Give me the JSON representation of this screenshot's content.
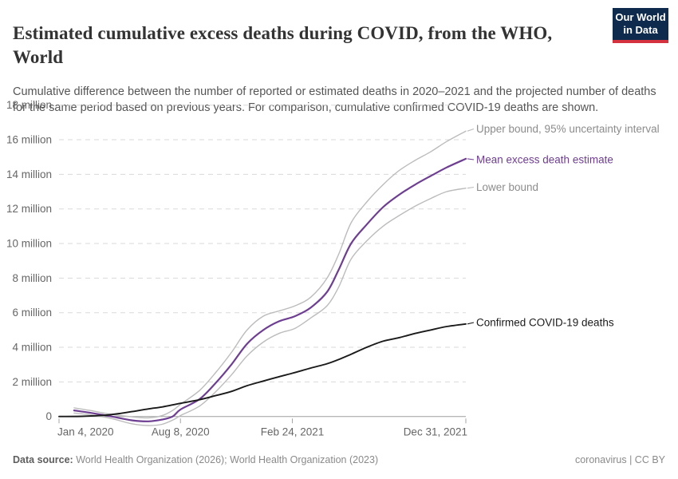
{
  "header": {
    "title": "Estimated cumulative excess deaths during COVID, from the WHO, World",
    "subtitle": "Cumulative difference between the number of reported or estimated deaths in 2020–2021 and the projected number of deaths for the same period based on previous years. For comparison, cumulative confirmed COVID-19 deaths are shown.",
    "logo": {
      "line1": "Our World",
      "line2": "in Data"
    }
  },
  "footer": {
    "source_label": "Data source:",
    "source_text": " World Health Organization (2026); World Health Organization (2023)",
    "right_text": "coronavirus | CC BY"
  },
  "colors": {
    "accent_purple": "#6d3e91",
    "bound_gray": "#bcbcbc",
    "bound_label_gray": "#8c8c8c",
    "confirmed_black": "#1a1a1a",
    "grid": "#dadada",
    "zero_line": "#9e9e9e",
    "tick_text": "#666666",
    "logo_navy": "#0e2a4d",
    "logo_red": "#d4323e"
  },
  "chart_data": {
    "type": "line",
    "title": "Estimated cumulative excess deaths during COVID, from the WHO, World",
    "unit": "million deaths",
    "x_unit": "days since Jan 4, 2020",
    "x_range_days": 727,
    "ylim": [
      -0.9,
      18
    ],
    "grid": "dashed-horizontal",
    "legend_position": "right-of-line-ends",
    "y_ticks": [
      {
        "v": 0,
        "label": "0"
      },
      {
        "v": 2,
        "label": "2 million"
      },
      {
        "v": 4,
        "label": "4 million"
      },
      {
        "v": 6,
        "label": "6 million"
      },
      {
        "v": 8,
        "label": "8 million"
      },
      {
        "v": 10,
        "label": "10 million"
      },
      {
        "v": 12,
        "label": "12 million"
      },
      {
        "v": 14,
        "label": "14 million"
      },
      {
        "v": 16,
        "label": "16 million"
      },
      {
        "v": 18,
        "label": "18 million"
      }
    ],
    "x_ticks": [
      {
        "d": 0,
        "label": "Jan 4, 2020",
        "align": "start"
      },
      {
        "d": 217,
        "label": "Aug 8, 2020",
        "align": "middle"
      },
      {
        "d": 417,
        "label": "Feb 24, 2021",
        "align": "middle"
      },
      {
        "d": 727,
        "label": "Dec 31, 2021",
        "align": "end"
      }
    ],
    "series": [
      {
        "id": "upper-bound",
        "label": "Upper bound, 95% uncertainty interval",
        "color": "#bcbcbc",
        "label_color": "#8c8c8c",
        "width": 1.4,
        "end_value_millions": 16.5,
        "points": [
          [
            27,
            0.5
          ],
          [
            55,
            0.35
          ],
          [
            94,
            0.12
          ],
          [
            130,
            -0.02
          ],
          [
            160,
            -0.08
          ],
          [
            184,
            0.05
          ],
          [
            203,
            0.35
          ],
          [
            217,
            0.7
          ],
          [
            251,
            1.5
          ],
          [
            279,
            2.5
          ],
          [
            308,
            3.7
          ],
          [
            336,
            5.0
          ],
          [
            365,
            5.8
          ],
          [
            393,
            6.1
          ],
          [
            422,
            6.4
          ],
          [
            450,
            6.9
          ],
          [
            479,
            8.0
          ],
          [
            500,
            9.4
          ],
          [
            522,
            11.2
          ],
          [
            550,
            12.4
          ],
          [
            579,
            13.4
          ],
          [
            607,
            14.2
          ],
          [
            636,
            14.8
          ],
          [
            664,
            15.3
          ],
          [
            693,
            15.9
          ],
          [
            727,
            16.5
          ]
        ]
      },
      {
        "id": "lower-bound",
        "label": "Lower bound",
        "color": "#bcbcbc",
        "label_color": "#8c8c8c",
        "width": 1.4,
        "end_value_millions": 13.2,
        "points": [
          [
            27,
            0.2
          ],
          [
            55,
            0.1
          ],
          [
            94,
            -0.12
          ],
          [
            130,
            -0.42
          ],
          [
            160,
            -0.52
          ],
          [
            184,
            -0.45
          ],
          [
            205,
            -0.18
          ],
          [
            217,
            0.05
          ],
          [
            251,
            0.6
          ],
          [
            279,
            1.4
          ],
          [
            308,
            2.4
          ],
          [
            336,
            3.5
          ],
          [
            365,
            4.3
          ],
          [
            393,
            4.8
          ],
          [
            422,
            5.1
          ],
          [
            450,
            5.7
          ],
          [
            479,
            6.4
          ],
          [
            500,
            7.5
          ],
          [
            522,
            9.1
          ],
          [
            550,
            10.15
          ],
          [
            579,
            11.0
          ],
          [
            607,
            11.6
          ],
          [
            636,
            12.15
          ],
          [
            664,
            12.6
          ],
          [
            693,
            13.0
          ],
          [
            727,
            13.2
          ]
        ]
      },
      {
        "id": "mean-excess",
        "label": "Mean excess death estimate",
        "color": "#6d3e91",
        "label_color": "#6d3e91",
        "width": 2.2,
        "end_value_millions": 14.9,
        "points": [
          [
            27,
            0.35
          ],
          [
            55,
            0.22
          ],
          [
            94,
            0.0
          ],
          [
            130,
            -0.22
          ],
          [
            160,
            -0.28
          ],
          [
            184,
            -0.18
          ],
          [
            203,
            0.0
          ],
          [
            217,
            0.4
          ],
          [
            251,
            1.0
          ],
          [
            279,
            1.9
          ],
          [
            308,
            3.0
          ],
          [
            336,
            4.2
          ],
          [
            365,
            5.0
          ],
          [
            393,
            5.5
          ],
          [
            422,
            5.8
          ],
          [
            450,
            6.3
          ],
          [
            479,
            7.2
          ],
          [
            500,
            8.5
          ],
          [
            522,
            10.0
          ],
          [
            550,
            11.1
          ],
          [
            579,
            12.1
          ],
          [
            607,
            12.8
          ],
          [
            636,
            13.4
          ],
          [
            664,
            13.9
          ],
          [
            693,
            14.4
          ],
          [
            727,
            14.9
          ]
        ]
      },
      {
        "id": "confirmed-deaths",
        "label": "Confirmed COVID-19 deaths",
        "color": "#1a1a1a",
        "label_color": "#1a1a1a",
        "width": 1.9,
        "end_value_millions": 5.35,
        "points": [
          [
            0,
            0.0
          ],
          [
            40,
            0.01
          ],
          [
            80,
            0.07
          ],
          [
            110,
            0.18
          ],
          [
            130,
            0.28
          ],
          [
            160,
            0.44
          ],
          [
            184,
            0.55
          ],
          [
            217,
            0.76
          ],
          [
            251,
            0.97
          ],
          [
            279,
            1.2
          ],
          [
            308,
            1.45
          ],
          [
            336,
            1.78
          ],
          [
            365,
            2.05
          ],
          [
            393,
            2.3
          ],
          [
            417,
            2.5
          ],
          [
            450,
            2.8
          ],
          [
            479,
            3.05
          ],
          [
            500,
            3.3
          ],
          [
            522,
            3.6
          ],
          [
            550,
            4.0
          ],
          [
            579,
            4.35
          ],
          [
            607,
            4.55
          ],
          [
            636,
            4.8
          ],
          [
            664,
            5.0
          ],
          [
            693,
            5.2
          ],
          [
            727,
            5.35
          ]
        ]
      }
    ]
  }
}
